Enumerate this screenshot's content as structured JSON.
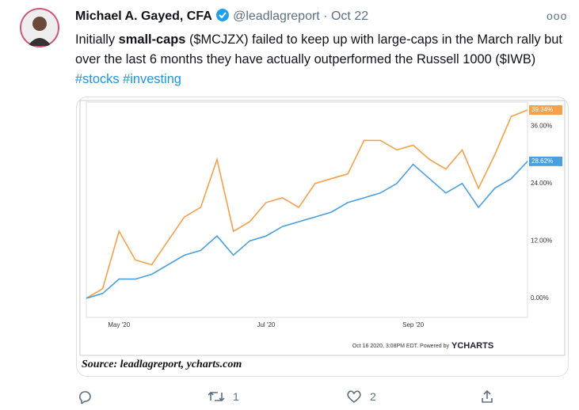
{
  "tweet": {
    "name": "Michael A. Gayed, CFA",
    "handle": "@leadlagreport",
    "dot": "·",
    "date": "Oct 22",
    "text": [
      "Initially ",
      "small-caps",
      " ($MCJZX) failed to keep up with large-caps in the March rally but over the last 6 months they have actually outperformed the Russell 1000 ($IWB) ",
      "#stocks #investing"
    ],
    "retweets": "1",
    "likes": "2",
    "caption": "Source: leadlagreport, ycharts.com",
    "chart_footer": "Oct 16 2020, 3:08PM EDT. Powered by",
    "chart_brand": "YCHARTS"
  },
  "chart_data": {
    "type": "line",
    "categories": [
      null,
      null,
      "May '20",
      null,
      null,
      null,
      null,
      null,
      null,
      null,
      null,
      "Jul '20",
      null,
      null,
      null,
      null,
      null,
      null,
      null,
      null,
      "Sep '20",
      null,
      null,
      null,
      null,
      null,
      null,
      null
    ],
    "series": [
      {
        "color": "#f5a04a",
        "values": [
          0,
          2,
          14,
          8,
          7,
          12,
          17,
          19,
          29,
          14,
          16,
          20,
          21,
          19,
          24,
          25,
          26,
          33,
          33,
          31,
          32,
          29,
          27,
          31,
          23,
          30,
          38,
          39.34
        ],
        "value_labels": [
          null,
          null,
          null,
          null,
          null,
          null,
          null,
          null,
          null,
          null,
          null,
          null,
          null,
          null,
          null,
          null,
          null,
          null,
          null,
          null,
          null,
          null,
          null,
          null,
          null,
          null,
          null,
          "39.34%"
        ]
      },
      {
        "color": "#4a9fe0",
        "values": [
          0,
          1,
          4,
          4,
          5,
          7,
          9,
          10,
          13,
          9,
          12,
          13,
          15,
          16,
          17,
          18,
          20,
          21,
          22,
          24,
          28,
          25,
          22,
          24,
          19,
          23,
          25,
          28.62
        ],
        "value_labels": [
          null,
          null,
          null,
          null,
          null,
          null,
          null,
          null,
          null,
          null,
          null,
          null,
          null,
          null,
          null,
          null,
          null,
          null,
          null,
          null,
          null,
          null,
          null,
          null,
          null,
          null,
          null,
          "28.62%"
        ]
      }
    ],
    "ylim": [
      -4,
      41
    ],
    "yticks": [
      {
        "value": 0,
        "label": "0.00%"
      },
      {
        "value": 12,
        "label": "12.00%"
      },
      {
        "value": 24,
        "label": "24.00%"
      },
      {
        "value": 36,
        "label": "36.00%"
      }
    ],
    "grid": false
  }
}
